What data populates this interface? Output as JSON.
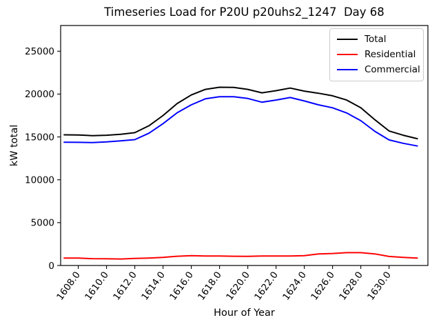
{
  "chart_data": {
    "type": "line",
    "title": "Timeseries Load for P20U p20uhs2_1247  Day 68",
    "xlabel": "Hour of Year",
    "ylabel": "kW total",
    "x": [
      1607,
      1608,
      1609,
      1610,
      1611,
      1612,
      1613,
      1614,
      1615,
      1616,
      1617,
      1618,
      1619,
      1620,
      1621,
      1622,
      1623,
      1624,
      1625,
      1626,
      1627,
      1628,
      1629,
      1630,
      1631,
      1632
    ],
    "series": [
      {
        "name": "Total",
        "color": "#000000",
        "values": [
          15250,
          15230,
          15150,
          15200,
          15300,
          15500,
          16300,
          17500,
          18900,
          19900,
          20550,
          20800,
          20780,
          20550,
          20150,
          20400,
          20700,
          20350,
          20100,
          19800,
          19300,
          18400,
          17000,
          15700,
          15200,
          14800
        ]
      },
      {
        "name": "Residential",
        "color": "#ff0000",
        "values": [
          870,
          860,
          800,
          780,
          760,
          820,
          870,
          950,
          1080,
          1150,
          1100,
          1100,
          1080,
          1060,
          1100,
          1100,
          1100,
          1150,
          1350,
          1400,
          1500,
          1500,
          1350,
          1050,
          940,
          860
        ]
      },
      {
        "name": "Commercial",
        "color": "#0000ff",
        "values": [
          14380,
          14370,
          14350,
          14420,
          14540,
          14680,
          15430,
          16550,
          17820,
          18750,
          19450,
          19700,
          19700,
          19490,
          19050,
          19300,
          19600,
          19200,
          18750,
          18400,
          17800,
          16900,
          15650,
          14650,
          14260,
          13940
        ]
      }
    ],
    "xlim": [
      1606.75,
      1632.75
    ],
    "ylim": [
      0,
      28000
    ],
    "xticks": {
      "values": [
        1608,
        1610,
        1612,
        1614,
        1616,
        1618,
        1620,
        1622,
        1624,
        1626,
        1628,
        1630
      ],
      "labels": [
        "1608.0",
        "1610.0",
        "1612.0",
        "1614.0",
        "1616.0",
        "1618.0",
        "1620.0",
        "1622.0",
        "1624.0",
        "1626.0",
        "1628.0",
        "1630.0"
      ],
      "rotation": 54
    },
    "yticks": {
      "values": [
        0,
        5000,
        10000,
        15000,
        20000,
        25000
      ],
      "labels": [
        "0",
        "5000",
        "10000",
        "15000",
        "20000",
        "25000"
      ]
    },
    "grid": false,
    "legend": {
      "position": "upper right",
      "entries": [
        "Total",
        "Residential",
        "Commercial"
      ]
    },
    "line_width": 2,
    "axis_color": "#000000",
    "background_color": "#ffffff"
  }
}
